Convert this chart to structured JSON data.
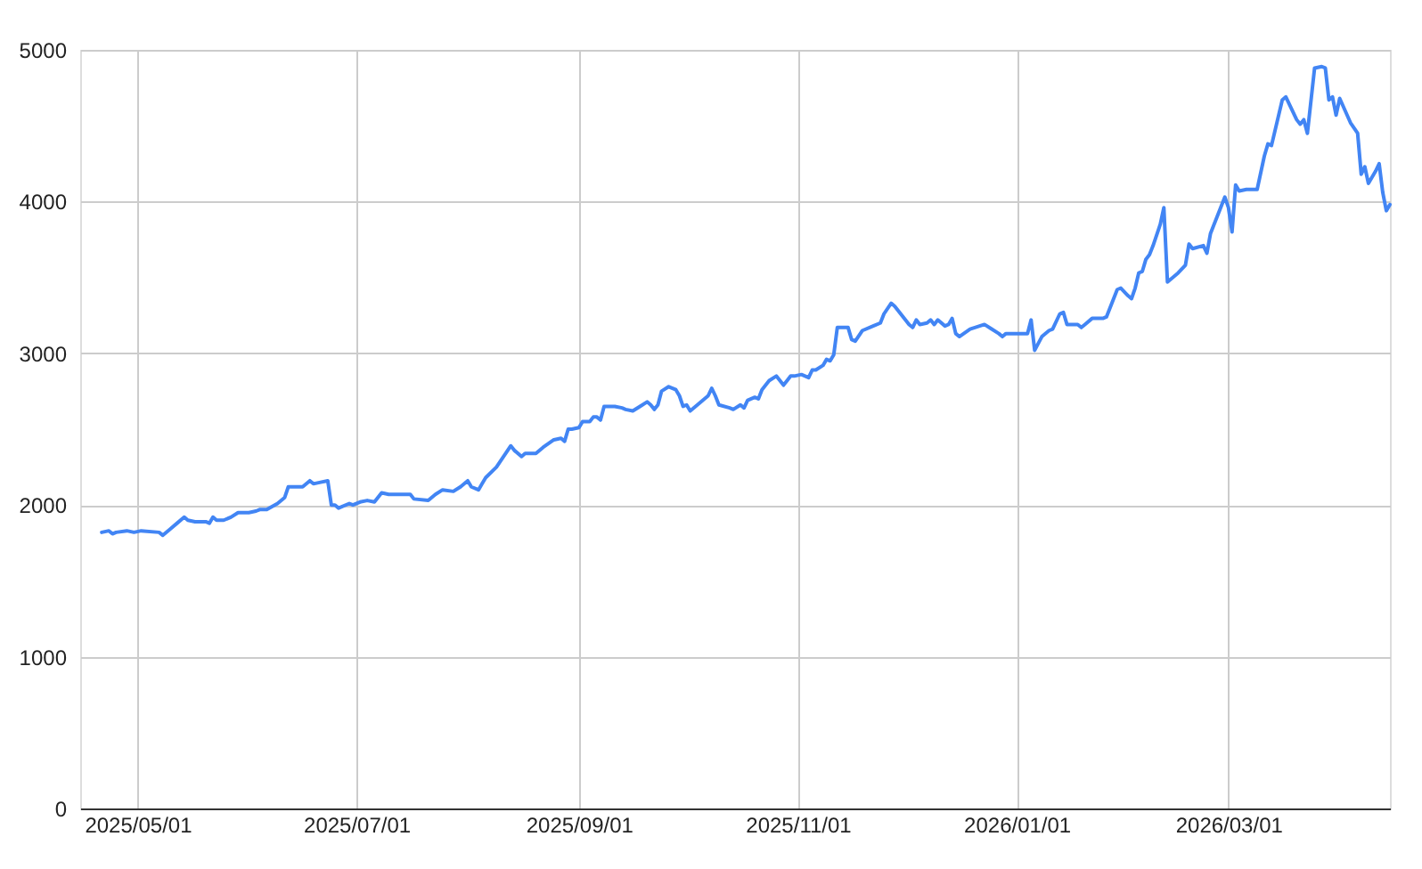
{
  "chart_data": {
    "type": "line",
    "x": [
      "2025-04-21",
      "2025-04-23",
      "2025-04-24",
      "2025-04-25",
      "2025-04-28",
      "2025-04-30",
      "2025-05-02",
      "2025-05-07",
      "2025-05-08",
      "2025-05-10",
      "2025-05-12",
      "2025-05-14",
      "2025-05-15",
      "2025-05-17",
      "2025-05-20",
      "2025-05-21",
      "2025-05-22",
      "2025-05-23",
      "2025-05-25",
      "2025-05-27",
      "2025-05-29",
      "2025-05-30",
      "2025-06-01",
      "2025-06-03",
      "2025-06-04",
      "2025-06-06",
      "2025-06-09",
      "2025-06-11",
      "2025-06-12",
      "2025-06-15",
      "2025-06-16",
      "2025-06-18",
      "2025-06-19",
      "2025-06-21",
      "2025-06-23",
      "2025-06-24",
      "2025-06-25",
      "2025-06-26",
      "2025-06-29",
      "2025-06-30",
      "2025-07-02",
      "2025-07-04",
      "2025-07-06",
      "2025-07-08",
      "2025-07-10",
      "2025-07-13",
      "2025-07-16",
      "2025-07-17",
      "2025-07-21",
      "2025-07-23",
      "2025-07-25",
      "2025-07-28",
      "2025-07-30",
      "2025-08-01",
      "2025-08-02",
      "2025-08-04",
      "2025-08-05",
      "2025-08-06",
      "2025-08-09",
      "2025-08-11",
      "2025-08-13",
      "2025-08-14",
      "2025-08-16",
      "2025-08-17",
      "2025-08-20",
      "2025-08-22",
      "2025-08-25",
      "2025-08-27",
      "2025-08-28",
      "2025-08-29",
      "2025-08-30",
      "2025-09-01",
      "2025-09-02",
      "2025-09-04",
      "2025-09-05",
      "2025-09-06",
      "2025-09-07",
      "2025-09-08",
      "2025-09-11",
      "2025-09-13",
      "2025-09-14",
      "2025-09-16",
      "2025-09-18",
      "2025-09-20",
      "2025-09-21",
      "2025-09-22",
      "2025-09-23",
      "2025-09-24",
      "2025-09-26",
      "2025-09-28",
      "2025-09-29",
      "2025-09-30",
      "2025-10-01",
      "2025-10-02",
      "2025-10-04",
      "2025-10-07",
      "2025-10-08",
      "2025-10-09",
      "2025-10-10",
      "2025-10-13",
      "2025-10-14",
      "2025-10-16",
      "2025-10-17",
      "2025-10-18",
      "2025-10-20",
      "2025-10-21",
      "2025-10-22",
      "2025-10-24",
      "2025-10-26",
      "2025-10-28",
      "2025-10-29",
      "2025-10-30",
      "2025-10-31",
      "2025-11-02",
      "2025-11-04",
      "2025-11-05",
      "2025-11-06",
      "2025-11-08",
      "2025-11-09",
      "2025-11-10",
      "2025-11-11",
      "2025-11-12",
      "2025-11-15",
      "2025-11-16",
      "2025-11-17",
      "2025-11-19",
      "2025-11-22",
      "2025-11-24",
      "2025-11-25",
      "2025-11-27",
      "2025-11-28",
      "2025-11-30",
      "2025-12-02",
      "2025-12-03",
      "2025-12-04",
      "2025-12-05",
      "2025-12-07",
      "2025-12-08",
      "2025-12-09",
      "2025-12-10",
      "2025-12-12",
      "2025-12-13",
      "2025-12-14",
      "2025-12-15",
      "2025-12-16",
      "2025-12-19",
      "2025-12-23",
      "2025-12-25",
      "2025-12-27",
      "2025-12-28",
      "2025-12-29",
      "2026-01-01",
      "2026-01-04",
      "2026-01-05",
      "2026-01-06",
      "2026-01-08",
      "2026-01-10",
      "2026-01-11",
      "2026-01-13",
      "2026-01-14",
      "2026-01-15",
      "2026-01-17",
      "2026-01-18",
      "2026-01-19",
      "2026-01-20",
      "2026-01-22",
      "2026-01-25",
      "2026-01-26",
      "2026-01-29",
      "2026-01-30",
      "2026-02-01",
      "2026-02-02",
      "2026-02-03",
      "2026-02-04",
      "2026-02-05",
      "2026-02-06",
      "2026-02-07",
      "2026-02-08",
      "2026-02-10",
      "2026-02-11",
      "2026-02-12",
      "2026-02-15",
      "2026-02-17",
      "2026-02-18",
      "2026-02-19",
      "2026-02-22",
      "2026-02-23",
      "2026-02-24",
      "2026-02-27",
      "2026-02-28",
      "2026-03-01",
      "2026-03-02",
      "2026-03-03",
      "2026-03-04",
      "2026-03-06",
      "2026-03-09",
      "2026-03-11",
      "2026-03-12",
      "2026-03-13",
      "2026-03-16",
      "2026-03-17",
      "2026-03-20",
      "2026-03-21",
      "2026-03-22",
      "2026-03-23",
      "2026-03-25",
      "2026-03-27",
      "2026-03-28",
      "2026-03-29",
      "2026-03-30",
      "2026-03-31",
      "2026-04-01",
      "2026-04-04",
      "2026-04-06",
      "2026-04-07",
      "2026-04-08",
      "2026-04-09",
      "2026-04-11",
      "2026-04-12",
      "2026-04-13",
      "2026-04-14",
      "2026-04-15"
    ],
    "series": [
      {
        "color": "#4285f4",
        "values": [
          1820,
          1830,
          1810,
          1820,
          1830,
          1820,
          1830,
          1820,
          1800,
          1840,
          1880,
          1920,
          1900,
          1890,
          1890,
          1880,
          1920,
          1900,
          1900,
          1920,
          1950,
          1950,
          1950,
          1960,
          1970,
          1970,
          2010,
          2050,
          2120,
          2120,
          2120,
          2160,
          2140,
          2150,
          2160,
          2000,
          2000,
          1980,
          2010,
          2000,
          2020,
          2030,
          2020,
          2080,
          2070,
          2070,
          2070,
          2040,
          2030,
          2070,
          2100,
          2090,
          2120,
          2160,
          2120,
          2100,
          2140,
          2180,
          2250,
          2320,
          2390,
          2360,
          2320,
          2340,
          2340,
          2380,
          2430,
          2440,
          2420,
          2500,
          2500,
          2510,
          2550,
          2550,
          2580,
          2580,
          2560,
          2650,
          2650,
          2640,
          2630,
          2620,
          2650,
          2680,
          2660,
          2630,
          2660,
          2750,
          2780,
          2760,
          2720,
          2650,
          2660,
          2620,
          2660,
          2720,
          2770,
          2720,
          2660,
          2640,
          2630,
          2660,
          2640,
          2690,
          2710,
          2700,
          2760,
          2820,
          2850,
          2790,
          2820,
          2850,
          2850,
          2860,
          2840,
          2890,
          2890,
          2920,
          2960,
          2950,
          2990,
          3170,
          3170,
          3090,
          3080,
          3150,
          3180,
          3200,
          3260,
          3330,
          3310,
          3250,
          3190,
          3170,
          3220,
          3190,
          3200,
          3220,
          3190,
          3220,
          3180,
          3190,
          3230,
          3130,
          3110,
          3160,
          3190,
          3160,
          3130,
          3110,
          3130,
          3130,
          3130,
          3220,
          3020,
          3110,
          3150,
          3160,
          3260,
          3270,
          3190,
          3190,
          3190,
          3170,
          3190,
          3230,
          3230,
          3240,
          3420,
          3430,
          3380,
          3360,
          3430,
          3530,
          3540,
          3620,
          3650,
          3710,
          3850,
          3960,
          3470,
          3530,
          3580,
          3720,
          3690,
          3710,
          3660,
          3790,
          3970,
          4030,
          3960,
          3800,
          4110,
          4070,
          4080,
          4080,
          4300,
          4380,
          4370,
          4670,
          4690,
          4540,
          4510,
          4540,
          4450,
          4880,
          4890,
          4880,
          4670,
          4690,
          4570,
          4680,
          4520,
          4450,
          4180,
          4230,
          4120,
          4200,
          4250,
          4060,
          3940,
          3980
        ]
      }
    ],
    "xlim": [
      "2025-04-15",
      "2026-04-15"
    ],
    "xticks": [
      {
        "value": "2025-05-01",
        "label": "2025/05/01"
      },
      {
        "value": "2025-07-01",
        "label": "2025/07/01"
      },
      {
        "value": "2025-09-01",
        "label": "2025/09/01"
      },
      {
        "value": "2025-11-01",
        "label": "2025/11/01"
      },
      {
        "value": "2026-01-01",
        "label": "2026/01/01"
      },
      {
        "value": "2026-03-01",
        "label": "2026/03/01"
      }
    ],
    "ylim": [
      0,
      5000
    ],
    "yticks": [
      0,
      1000,
      2000,
      3000,
      4000,
      5000
    ],
    "grid": true,
    "legend": false,
    "marker": "none",
    "line_style": "solid"
  }
}
